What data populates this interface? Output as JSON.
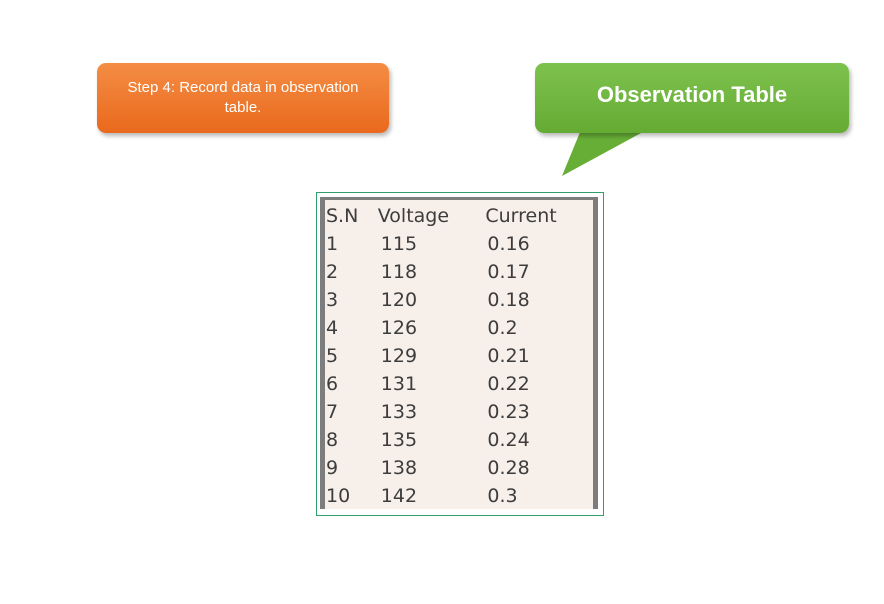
{
  "step": {
    "text": "Step 4: Record data in observation table."
  },
  "callout": {
    "text": "Observation Table"
  },
  "table": {
    "headers": [
      "S.N",
      "Voltage",
      "Current"
    ],
    "rows": [
      [
        "1",
        "115",
        "0.16"
      ],
      [
        "2",
        "118",
        "0.17"
      ],
      [
        "3",
        "120",
        "0.18"
      ],
      [
        "4",
        "126",
        "0.2"
      ],
      [
        "5",
        "129",
        "0.21"
      ],
      [
        "6",
        "131",
        "0.22"
      ],
      [
        "7",
        "133",
        "0.23"
      ],
      [
        "8",
        "135",
        "0.24"
      ],
      [
        "9",
        "138",
        "0.28"
      ],
      [
        "10",
        "142",
        "0.3"
      ]
    ]
  },
  "colors": {
    "step_box": "#ee7a2e",
    "callout": "#72b941",
    "table_background": "#f7efe9",
    "table_border": "#2f9e6a"
  }
}
